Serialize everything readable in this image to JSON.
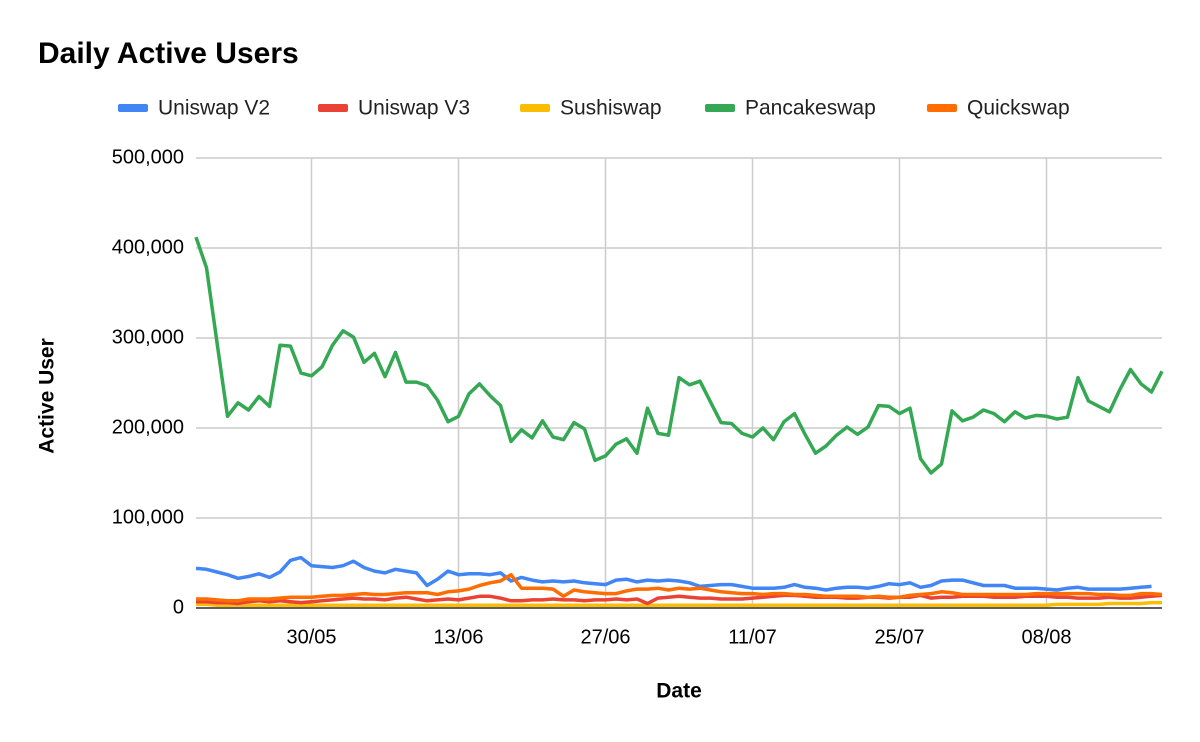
{
  "chart_data": {
    "type": "line",
    "title": "Daily Active Users",
    "x_label": "Date",
    "y_label": "Active User",
    "categories": [
      null,
      null,
      null,
      null,
      null,
      null,
      null,
      null,
      null,
      null,
      null,
      "30/05",
      null,
      null,
      null,
      null,
      null,
      null,
      null,
      null,
      null,
      null,
      null,
      null,
      null,
      "13/06",
      null,
      null,
      null,
      null,
      null,
      null,
      null,
      null,
      null,
      null,
      null,
      null,
      null,
      "27/06",
      null,
      null,
      null,
      null,
      null,
      null,
      null,
      null,
      null,
      null,
      null,
      null,
      null,
      "11/07",
      null,
      null,
      null,
      null,
      null,
      null,
      null,
      null,
      null,
      null,
      null,
      null,
      null,
      "25/07",
      null,
      null,
      null,
      null,
      null,
      null,
      null,
      null,
      null,
      null,
      null,
      null,
      null,
      "08/08",
      null,
      null,
      null,
      null,
      null,
      null,
      null,
      null,
      null,
      null,
      null
    ],
    "ylim": [
      0,
      500000
    ],
    "yticks": [
      0,
      {
        "value": 100000,
        "label": "100,000"
      },
      {
        "value": 200000,
        "label": "200,000"
      },
      {
        "value": 300000,
        "label": "300,000"
      },
      {
        "value": 400000,
        "label": "400,000"
      },
      {
        "value": 500000,
        "label": "500,000"
      }
    ],
    "grid": true,
    "legend": "top",
    "series": [
      {
        "name": "Uniswap V2",
        "color": "#4285f4",
        "values": [
          44000,
          43000,
          40000,
          37000,
          33000,
          35000,
          38000,
          34000,
          40000,
          53000,
          56000,
          47000,
          46000,
          45000,
          47000,
          52000,
          45000,
          41000,
          39000,
          43000,
          41000,
          39000,
          25000,
          32000,
          41000,
          37000,
          38000,
          38000,
          37000,
          39000,
          30000,
          34000,
          31000,
          29000,
          30000,
          29000,
          30000,
          28000,
          27000,
          26000,
          31000,
          32000,
          29000,
          31000,
          30000,
          31000,
          30000,
          28000,
          24000,
          25000,
          26000,
          26000,
          24000,
          22000,
          22000,
          22000,
          23000,
          26000,
          23000,
          22000,
          20000,
          22000,
          23000,
          23000,
          22000,
          24000,
          27000,
          26000,
          28000,
          23000,
          25000,
          30000,
          31000,
          31000,
          28000,
          25000,
          25000,
          25000,
          22000,
          22000,
          22000,
          21000,
          20000,
          22000,
          23000,
          21000,
          21000,
          21000,
          21000,
          22000,
          23000,
          24000,
          null
        ]
      },
      {
        "name": "Uniswap V3",
        "color": "#ea4335",
        "values": [
          7000,
          7000,
          6000,
          6000,
          5000,
          7000,
          8000,
          7000,
          8000,
          7000,
          6000,
          7000,
          8000,
          9000,
          10000,
          11000,
          10000,
          10000,
          9000,
          11000,
          12000,
          10000,
          8000,
          9000,
          10000,
          9000,
          11000,
          13000,
          13000,
          11000,
          8000,
          8000,
          9000,
          9000,
          10000,
          9000,
          9000,
          8000,
          9000,
          9000,
          10000,
          9000,
          10000,
          5000,
          11000,
          12000,
          13000,
          12000,
          11000,
          11000,
          10000,
          10000,
          10000,
          11000,
          12000,
          13000,
          14000,
          14000,
          13000,
          12000,
          12000,
          12000,
          11000,
          11000,
          12000,
          12000,
          11000,
          12000,
          12000,
          14000,
          11000,
          12000,
          12000,
          13000,
          13000,
          13000,
          12000,
          12000,
          12000,
          13000,
          13000,
          13000,
          12000,
          12000,
          11000,
          11000,
          11000,
          12000,
          11000,
          11000,
          12000,
          13000,
          14000
        ]
      },
      {
        "name": "Sushiswap",
        "color": "#fbbc04",
        "values": [
          4000,
          4000,
          3000,
          3000,
          3000,
          3000,
          3000,
          3000,
          3000,
          3000,
          3000,
          3000,
          3000,
          3000,
          3000,
          3000,
          3000,
          3000,
          3000,
          3000,
          3000,
          3000,
          3000,
          3000,
          3000,
          3000,
          3000,
          3000,
          3000,
          3000,
          3000,
          3000,
          3000,
          3000,
          3000,
          3000,
          3000,
          3000,
          3000,
          3000,
          3000,
          3000,
          3000,
          3000,
          3000,
          3000,
          3000,
          3000,
          3000,
          3000,
          3000,
          3000,
          3000,
          3000,
          3000,
          3000,
          3000,
          3000,
          3000,
          3000,
          3000,
          3000,
          3000,
          3000,
          3000,
          3000,
          3000,
          3000,
          3000,
          3000,
          3000,
          3000,
          3000,
          3000,
          3000,
          3000,
          3000,
          3000,
          3000,
          3000,
          3000,
          3000,
          4000,
          4000,
          4000,
          4000,
          4000,
          5000,
          5000,
          5000,
          5000,
          6000,
          6000
        ]
      },
      {
        "name": "Pancakeswap",
        "color": "#34a853",
        "values": [
          412000,
          378000,
          295000,
          213000,
          228000,
          220000,
          235000,
          224000,
          292000,
          291000,
          261000,
          258000,
          268000,
          292000,
          308000,
          301000,
          273000,
          283000,
          257000,
          284000,
          251000,
          251000,
          247000,
          231000,
          207000,
          213000,
          238000,
          249000,
          236000,
          225000,
          185000,
          198000,
          189000,
          208000,
          190000,
          187000,
          206000,
          199000,
          164000,
          169000,
          182000,
          188000,
          172000,
          222000,
          194000,
          192000,
          256000,
          248000,
          252000,
          229000,
          206000,
          205000,
          194000,
          190000,
          200000,
          187000,
          207000,
          216000,
          193000,
          172000,
          180000,
          192000,
          201000,
          193000,
          201000,
          225000,
          224000,
          216000,
          222000,
          166000,
          150000,
          160000,
          219000,
          208000,
          212000,
          220000,
          216000,
          207000,
          218000,
          211000,
          214000,
          213000,
          210000,
          212000,
          256000,
          230000,
          224000,
          218000,
          243000,
          265000,
          249000,
          240000,
          263000
        ]
      },
      {
        "name": "Quickswap",
        "color": "#ff6d01",
        "values": [
          10000,
          10000,
          9000,
          8000,
          8000,
          10000,
          10000,
          10000,
          11000,
          12000,
          12000,
          12000,
          13000,
          14000,
          14000,
          15000,
          16000,
          15000,
          15000,
          16000,
          17000,
          17000,
          17000,
          15000,
          18000,
          19000,
          21000,
          25000,
          28000,
          30000,
          37000,
          22000,
          22000,
          22000,
          21000,
          13000,
          20000,
          18000,
          17000,
          16000,
          16000,
          19000,
          21000,
          21000,
          22000,
          20000,
          22000,
          21000,
          22000,
          20000,
          18000,
          17000,
          16000,
          16000,
          15000,
          16000,
          16000,
          15000,
          15000,
          14000,
          13000,
          13000,
          13000,
          13000,
          12000,
          13000,
          12000,
          12000,
          14000,
          15000,
          16000,
          18000,
          17000,
          15000,
          15000,
          15000,
          15000,
          15000,
          15000,
          15000,
          16000,
          16000,
          16000,
          16000,
          16000,
          16000,
          15000,
          15000,
          14000,
          14000,
          16000,
          16000,
          15000
        ]
      }
    ]
  }
}
